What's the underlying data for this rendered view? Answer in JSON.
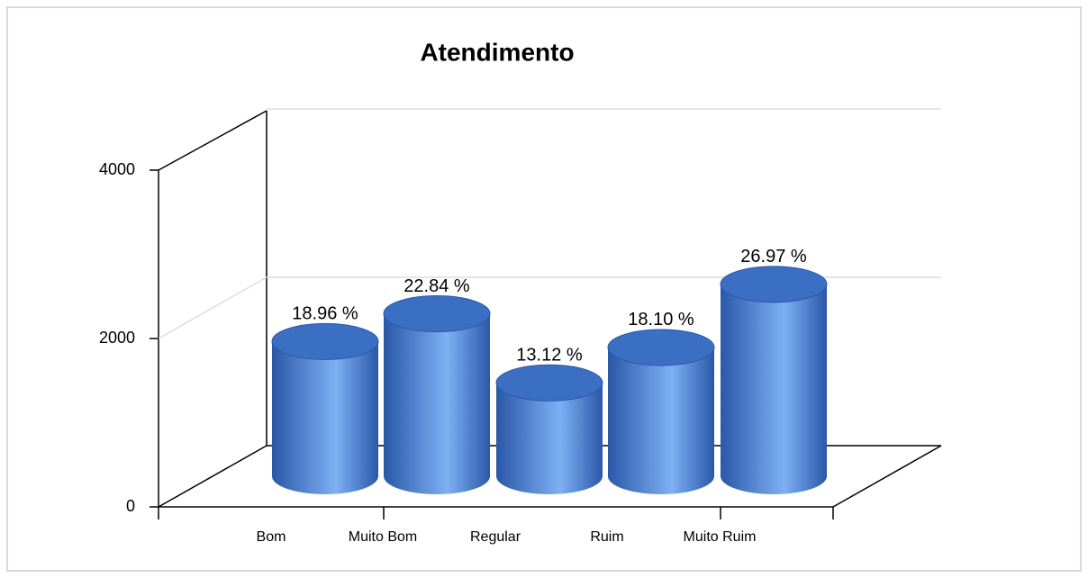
{
  "chart_data": {
    "type": "bar",
    "title": "Atendimento",
    "categories": [
      "Bom",
      "Muito Bom",
      "Regular",
      "Ruim",
      "Muito Ruim"
    ],
    "values": [
      1600,
      1930,
      1110,
      1530,
      2280
    ],
    "percentage_labels": [
      "18.96 %",
      "22.84 %",
      "13.12 %",
      "18.10 %",
      "26.97 %"
    ],
    "color": "#3a6fc4",
    "ylim": [
      0,
      4000
    ],
    "yticks": [
      0,
      2000,
      4000
    ],
    "grid": true
  }
}
